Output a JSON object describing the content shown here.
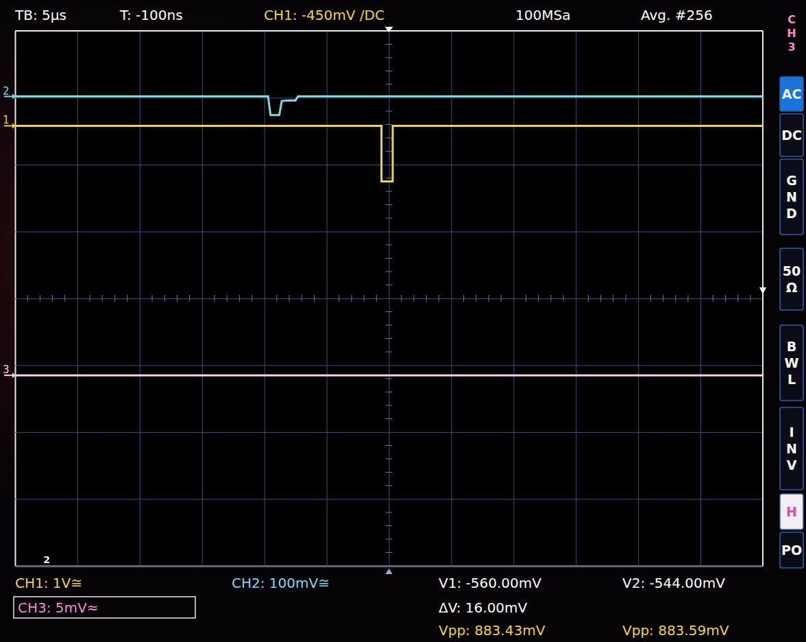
{
  "chart_data": {
    "type": "line",
    "header": [
      "TB: 5µs",
      "T: -100ns",
      "CH1: -450mV /DC",
      "100MSa",
      "Avg. #256"
    ],
    "side_menu": {
      "title": "CH3",
      "items": [
        "AC",
        "DC",
        "GND",
        "50 Ω",
        "BWL",
        "INV",
        "H",
        "PO"
      ]
    },
    "footer": [
      "CH1: 1V≅",
      "CH2: 100mV≅",
      "V1: -560.00mV",
      "V2: -544.00mV",
      "CH3: 5mV≈",
      "ΔV: 16.00mV",
      "Vpp: 883.43mV",
      "Vpp: 883.59mV"
    ],
    "annotations": [
      "2"
    ],
    "xlim": [
      -30,
      30
    ],
    "xticks": [
      -30,
      -25,
      -20,
      -15,
      -10,
      -5,
      0,
      5,
      10,
      15,
      20,
      25,
      30
    ],
    "ylim": [
      -4,
      4
    ],
    "yticks": [
      -4,
      -3,
      -2,
      -1,
      0,
      1,
      2,
      3,
      4
    ],
    "grid": true,
    "tick_labels": false,
    "series": [
      {
        "name": "1",
        "color": "#f0d43a",
        "x": [
          -30,
          -0.6,
          -0.6,
          0.3,
          0.3,
          30
        ],
        "values": [
          2.58,
          2.58,
          1.75,
          1.75,
          2.58,
          2.58
        ]
      },
      {
        "name": "2",
        "color": "#7fd8ea",
        "x": [
          -30,
          -9.7,
          -9.5,
          -8.8,
          -8.6,
          -8.1,
          -7.5,
          -7.3,
          30
        ],
        "values": [
          3.02,
          3.02,
          2.74,
          2.74,
          2.95,
          2.96,
          2.96,
          3.02,
          3.02
        ]
      },
      {
        "name": "3",
        "color": "#f4d0ec",
        "x": [
          -30,
          30
        ],
        "values": [
          -1.15,
          -1.15
        ]
      }
    ]
  }
}
